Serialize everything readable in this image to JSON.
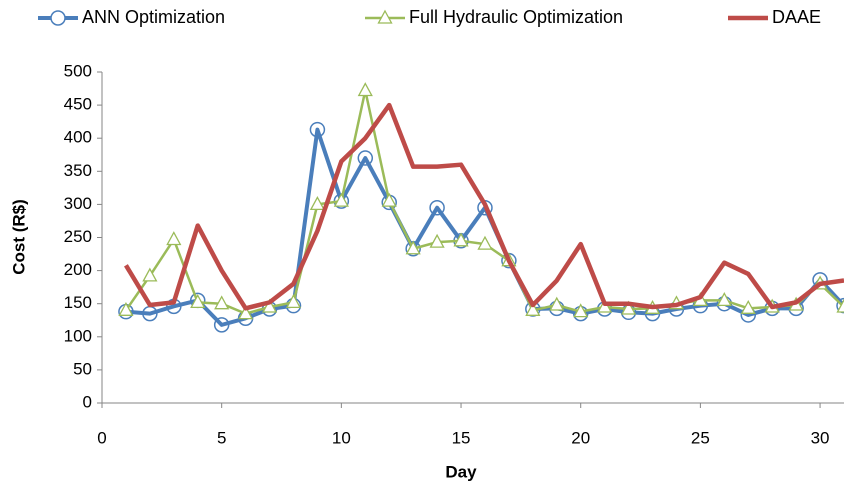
{
  "chart_data": {
    "type": "line",
    "x_label": "Day",
    "y_label": "Cost (R$)",
    "x": [
      1,
      2,
      3,
      4,
      5,
      6,
      7,
      8,
      9,
      10,
      11,
      12,
      13,
      14,
      15,
      16,
      17,
      18,
      19,
      20,
      21,
      22,
      23,
      24,
      25,
      26,
      27,
      28,
      29,
      30,
      31
    ],
    "series": [
      {
        "name": "ANN Optimization",
        "color": "#4a7ebb",
        "marker": "circle",
        "values": [
          138,
          135,
          146,
          155,
          118,
          128,
          142,
          147,
          413,
          305,
          370,
          303,
          233,
          295,
          245,
          295,
          215,
          142,
          143,
          135,
          142,
          137,
          135,
          142,
          147,
          150,
          133,
          143,
          143,
          186,
          147
        ]
      },
      {
        "name": "Full Hydraulic Optimization",
        "color": "#9bbb59",
        "marker": "triangle",
        "values": [
          140,
          192,
          247,
          152,
          150,
          135,
          145,
          152,
          300,
          305,
          472,
          305,
          233,
          243,
          245,
          240,
          215,
          140,
          148,
          138,
          145,
          142,
          143,
          150,
          155,
          155,
          143,
          145,
          148,
          180,
          145
        ]
      },
      {
        "name": "DAAE",
        "color": "#be4b48",
        "marker": "none",
        "values": [
          208,
          148,
          152,
          268,
          200,
          143,
          152,
          180,
          260,
          365,
          400,
          450,
          357,
          357,
          360,
          300,
          215,
          148,
          185,
          240,
          150,
          150,
          145,
          148,
          160,
          212,
          195,
          145,
          152,
          180,
          185
        ]
      }
    ],
    "xlim": [
      0,
      31
    ],
    "xticks": [
      0,
      5,
      10,
      15,
      20,
      25,
      30
    ],
    "ylim": [
      0,
      500
    ],
    "yticks": [
      0,
      50,
      100,
      150,
      200,
      250,
      300,
      350,
      400,
      450,
      500
    ],
    "grid": false
  }
}
